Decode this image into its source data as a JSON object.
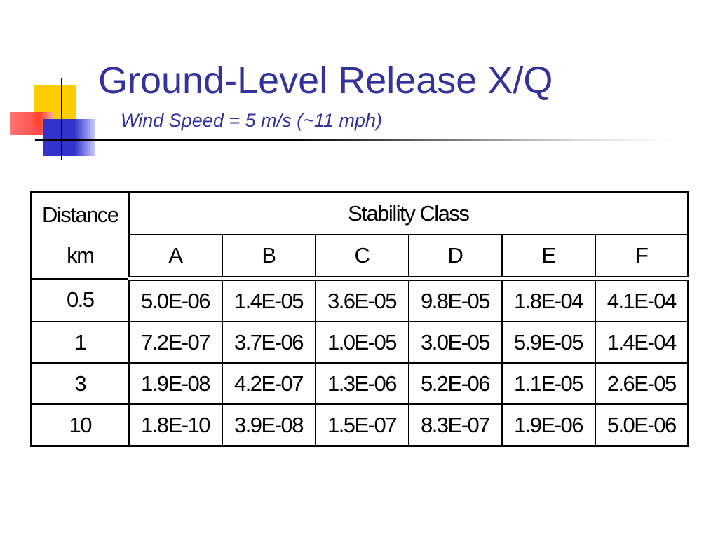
{
  "title": "Ground-Level Release X/Q",
  "subtitle": "Wind Speed = 5 m/s (~11 mph)",
  "table": {
    "corner": [
      "Distance",
      "km"
    ],
    "group_header": "Stability Class",
    "columns": [
      "A",
      "B",
      "C",
      "D",
      "E",
      "F"
    ],
    "rows": [
      [
        "0.5",
        "5.0E-06",
        "1.4E-05",
        "3.6E-05",
        "9.8E-05",
        "1.8E-04",
        "4.1E-04"
      ],
      [
        "1",
        "7.2E-07",
        "3.7E-06",
        "1.0E-05",
        "3.0E-05",
        "5.9E-05",
        "1.4E-04"
      ],
      [
        "3",
        "1.9E-08",
        "4.2E-07",
        "1.3E-06",
        "5.2E-06",
        "1.1E-05",
        "2.6E-05"
      ],
      [
        "10",
        "1.8E-10",
        "3.9E-08",
        "1.5E-07",
        "8.3E-07",
        "1.9E-06",
        "5.0E-06"
      ]
    ]
  }
}
